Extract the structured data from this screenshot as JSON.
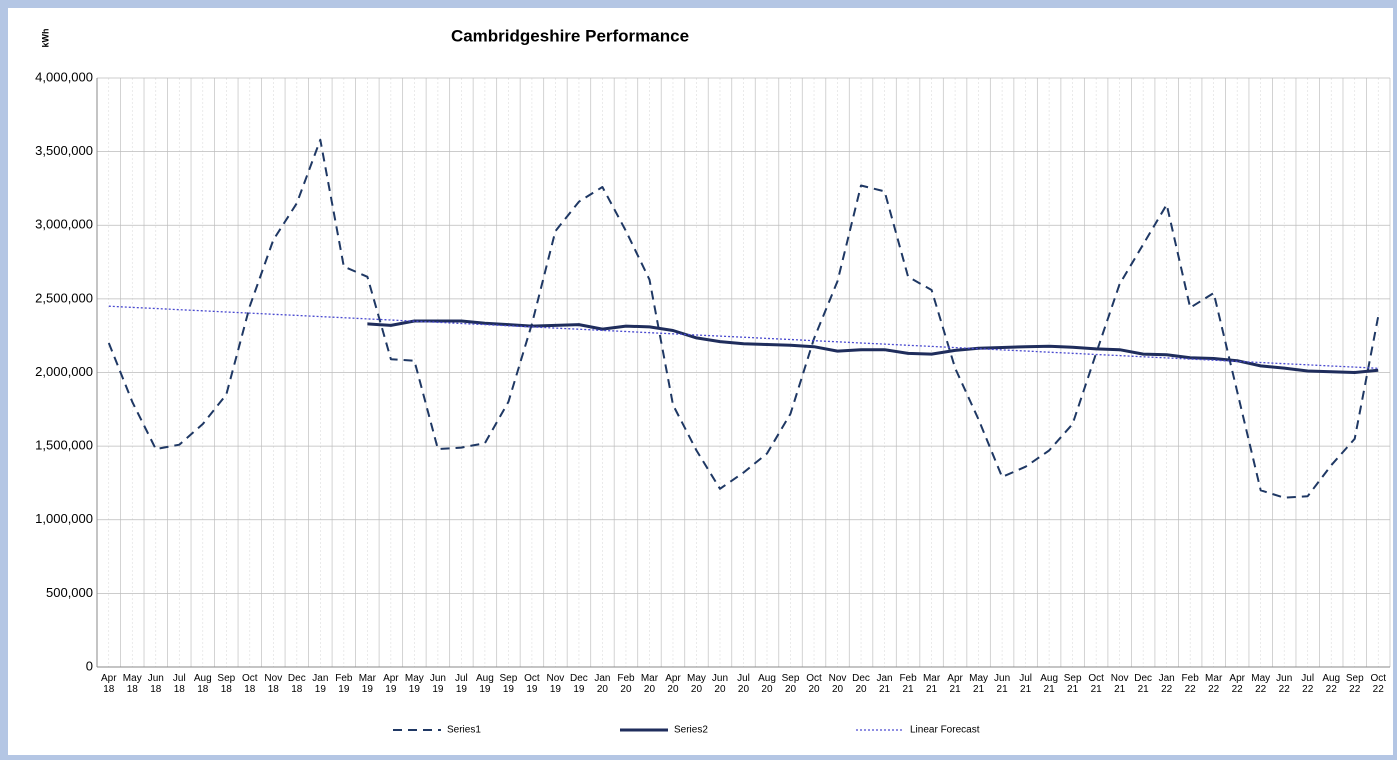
{
  "chart_data": {
    "type": "line",
    "title": "Cambridgeshire Performance",
    "y_label": "kWh",
    "categories": [
      "Apr 18",
      "May 18",
      "Jun 18",
      "Jul 18",
      "Aug 18",
      "Sep 18",
      "Oct 18",
      "Nov 18",
      "Dec 18",
      "Jan 19",
      "Feb 19",
      "Mar 19",
      "Apr 19",
      "May 19",
      "Jun 19",
      "Jul 19",
      "Aug 19",
      "Sep 19",
      "Oct 19",
      "Nov 19",
      "Dec 19",
      "Jan 20",
      "Feb 20",
      "Mar 20",
      "Apr 20",
      "May 20",
      "Jun 20",
      "Jul 20",
      "Aug 20",
      "Sep 20",
      "Oct 20",
      "Nov 20",
      "Dec 20",
      "Jan 21",
      "Feb 21",
      "Mar 21",
      "Apr 21",
      "May 21",
      "Jun 21",
      "Jul 21",
      "Aug 21",
      "Sep 21",
      "Oct 21",
      "Nov 21",
      "Dec 21",
      "Jan 22",
      "Feb 22",
      "Mar 22",
      "Apr 22",
      "May 22",
      "Jun 22",
      "Jul 22",
      "Aug 22",
      "Sep 22",
      "Oct 22"
    ],
    "series": [
      {
        "name": "Series1",
        "color": "#1f3864",
        "dash": "dashed",
        "values": [
          2200000,
          1800000,
          1480000,
          1510000,
          1650000,
          1850000,
          2450000,
          2900000,
          3150000,
          3580000,
          2720000,
          2650000,
          2090000,
          2080000,
          1480000,
          1490000,
          1520000,
          1800000,
          2330000,
          2960000,
          3160000,
          3260000,
          2960000,
          2630000,
          1780000,
          1470000,
          1210000,
          1320000,
          1450000,
          1720000,
          2230000,
          2620000,
          3270000,
          3230000,
          2650000,
          2560000,
          2030000,
          1680000,
          1290000,
          1360000,
          1470000,
          1650000,
          2130000,
          2600000,
          2870000,
          3140000,
          2440000,
          2540000,
          1870000,
          1200000,
          1150000,
          1160000,
          1370000,
          1550000,
          2380000
        ]
      },
      {
        "name": "Series2",
        "color": "#1f2d5c",
        "dash": "solid",
        "values": [
          null,
          null,
          null,
          null,
          null,
          null,
          null,
          null,
          null,
          null,
          null,
          2330000,
          2320000,
          2350000,
          2350000,
          2350000,
          2335000,
          2325000,
          2315000,
          2320000,
          2325000,
          2295000,
          2315000,
          2310000,
          2285000,
          2235000,
          2210000,
          2195000,
          2190000,
          2185000,
          2175000,
          2145000,
          2155000,
          2155000,
          2130000,
          2125000,
          2150000,
          2165000,
          2170000,
          2175000,
          2178000,
          2172000,
          2160000,
          2155000,
          2125000,
          2120000,
          2100000,
          2095000,
          2080000,
          2045000,
          2030000,
          2010000,
          2005000,
          2000000,
          2015000
        ]
      },
      {
        "name": "Linear Forecast",
        "color": "#4a4ad0",
        "dash": "dotted",
        "values": [
          2450000,
          2442200,
          2434400,
          2426600,
          2418800,
          2411000,
          2403200,
          2395400,
          2387600,
          2379800,
          2372000,
          2364200,
          2356400,
          2348600,
          2340800,
          2333000,
          2325200,
          2317400,
          2309600,
          2301800,
          2294000,
          2286200,
          2278400,
          2270600,
          2262800,
          2255000,
          2247200,
          2239400,
          2231600,
          2223800,
          2216000,
          2208200,
          2200400,
          2192600,
          2184800,
          2177000,
          2169200,
          2161400,
          2153600,
          2145800,
          2138000,
          2130200,
          2122400,
          2114600,
          2106800,
          2099000,
          2091200,
          2083400,
          2075600,
          2067800,
          2060000,
          2052200,
          2044400,
          2036600,
          2028800
        ]
      }
    ],
    "ylim": [
      0,
      4000000
    ],
    "yticks": [
      0,
      {
        "value": 500000,
        "label": "500,000"
      },
      {
        "value": 1000000,
        "label": "1,000,000"
      },
      {
        "value": 1500000,
        "label": "1,500,000"
      },
      {
        "value": 2000000,
        "label": "2,000,000"
      },
      {
        "value": 2500000,
        "label": "2,500,000"
      },
      {
        "value": 3000000,
        "label": "3,000,000"
      },
      {
        "value": 3500000,
        "label": "3,500,000"
      },
      {
        "value": 4000000,
        "label": "4,000,000"
      }
    ],
    "grid": true,
    "legend": "bottom"
  }
}
